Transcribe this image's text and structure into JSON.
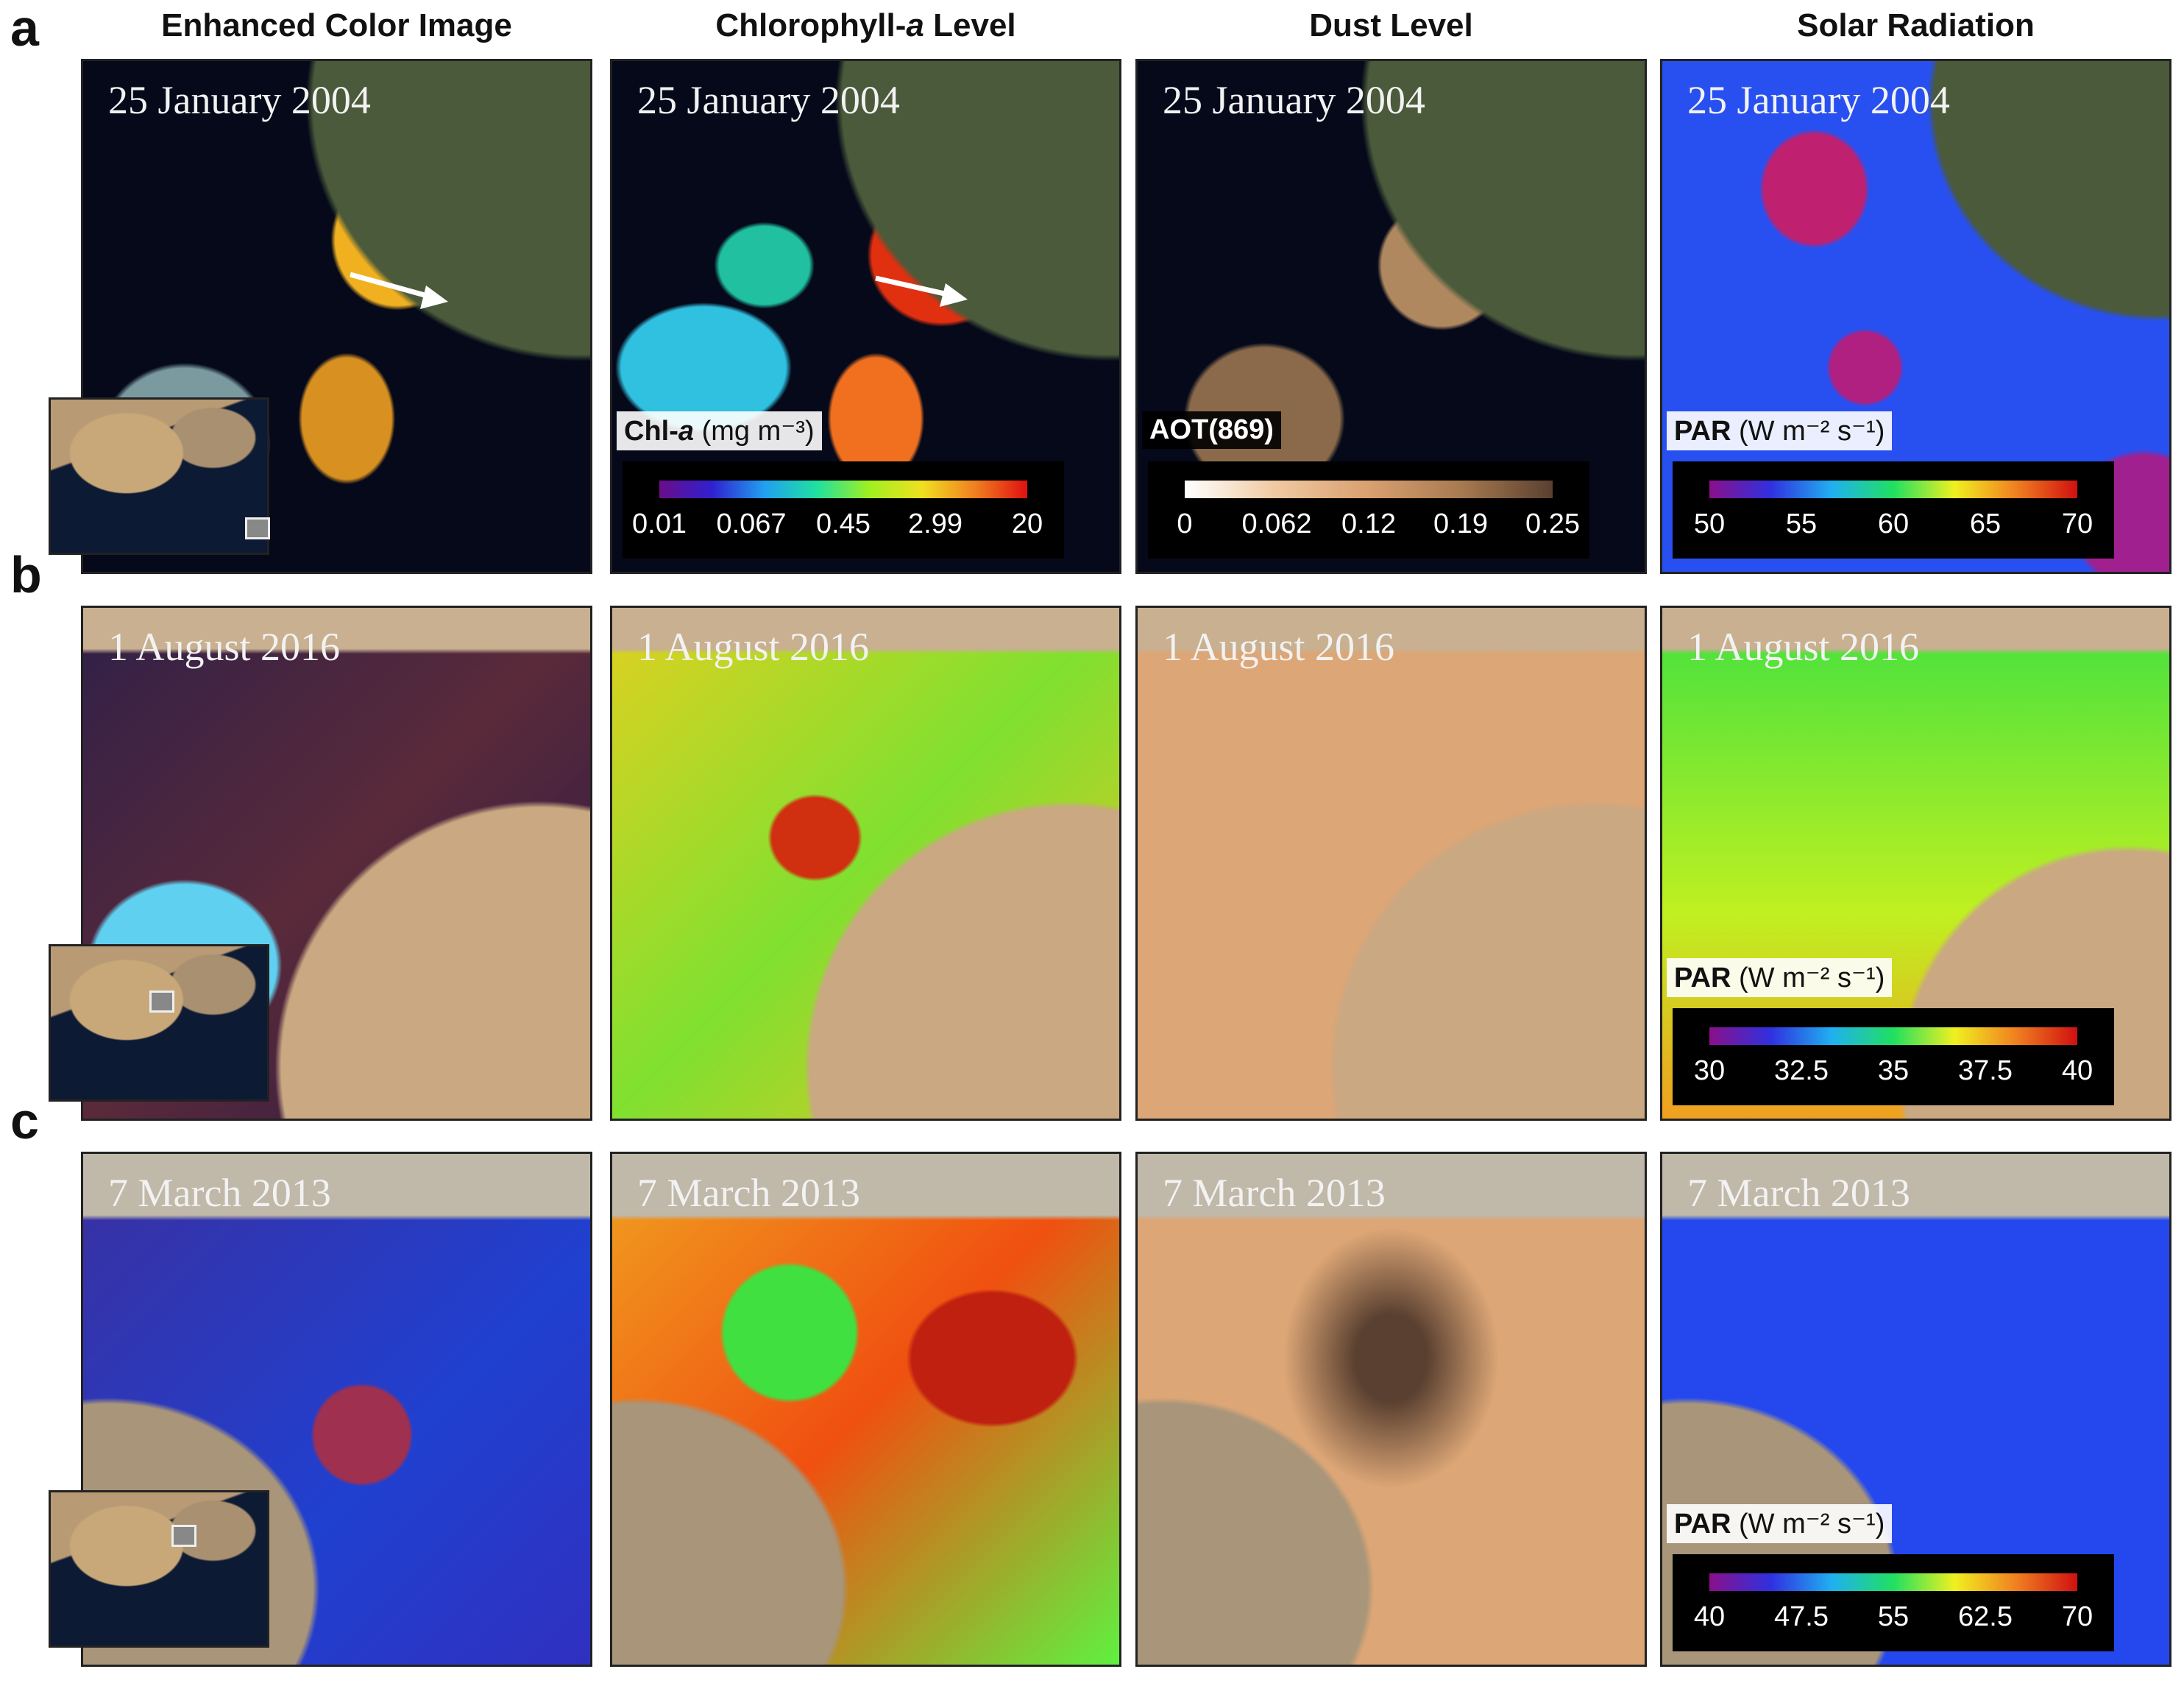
{
  "figure": {
    "column_headers": [
      [
        "Enhanced Color Image"
      ],
      [
        "Chlorophyll-",
        "a",
        " Level"
      ],
      [
        "Dust Level"
      ],
      [
        "Solar Radiation"
      ]
    ],
    "rows": [
      {
        "label": "a",
        "date": "25 January 2004",
        "panels": [
          {},
          {
            "legend": {
              "label": [
                "Chl-",
                "a"
              ],
              "unit": "(mg m⁻³)",
              "ticks": [
                0.01,
                0.067,
                0.45,
                2.99,
                20
              ]
            }
          },
          {
            "legend": {
              "label": [
                "AOT(869)"
              ],
              "ticks": [
                0,
                0.062,
                0.12,
                0.19,
                0.25
              ]
            }
          },
          {
            "legend": {
              "label": [
                "PAR"
              ],
              "unit": "(W m⁻² s⁻¹)",
              "ticks": [
                50,
                55,
                60,
                65,
                70
              ]
            }
          }
        ]
      },
      {
        "label": "b",
        "date": "1 August 2016",
        "panels": [
          {},
          {},
          {},
          {
            "legend": {
              "label": [
                "PAR"
              ],
              "unit": "(W m⁻² s⁻¹)",
              "ticks": [
                30,
                32.5,
                35,
                37.5,
                40
              ]
            }
          }
        ]
      },
      {
        "label": "c",
        "date": "7 March 2013",
        "panels": [
          {},
          {},
          {},
          {
            "legend": {
              "label": [
                "PAR"
              ],
              "unit": "(W m⁻² s⁻¹)",
              "ticks": [
                40,
                47.5,
                55,
                62.5,
                70
              ]
            }
          }
        ]
      }
    ]
  }
}
